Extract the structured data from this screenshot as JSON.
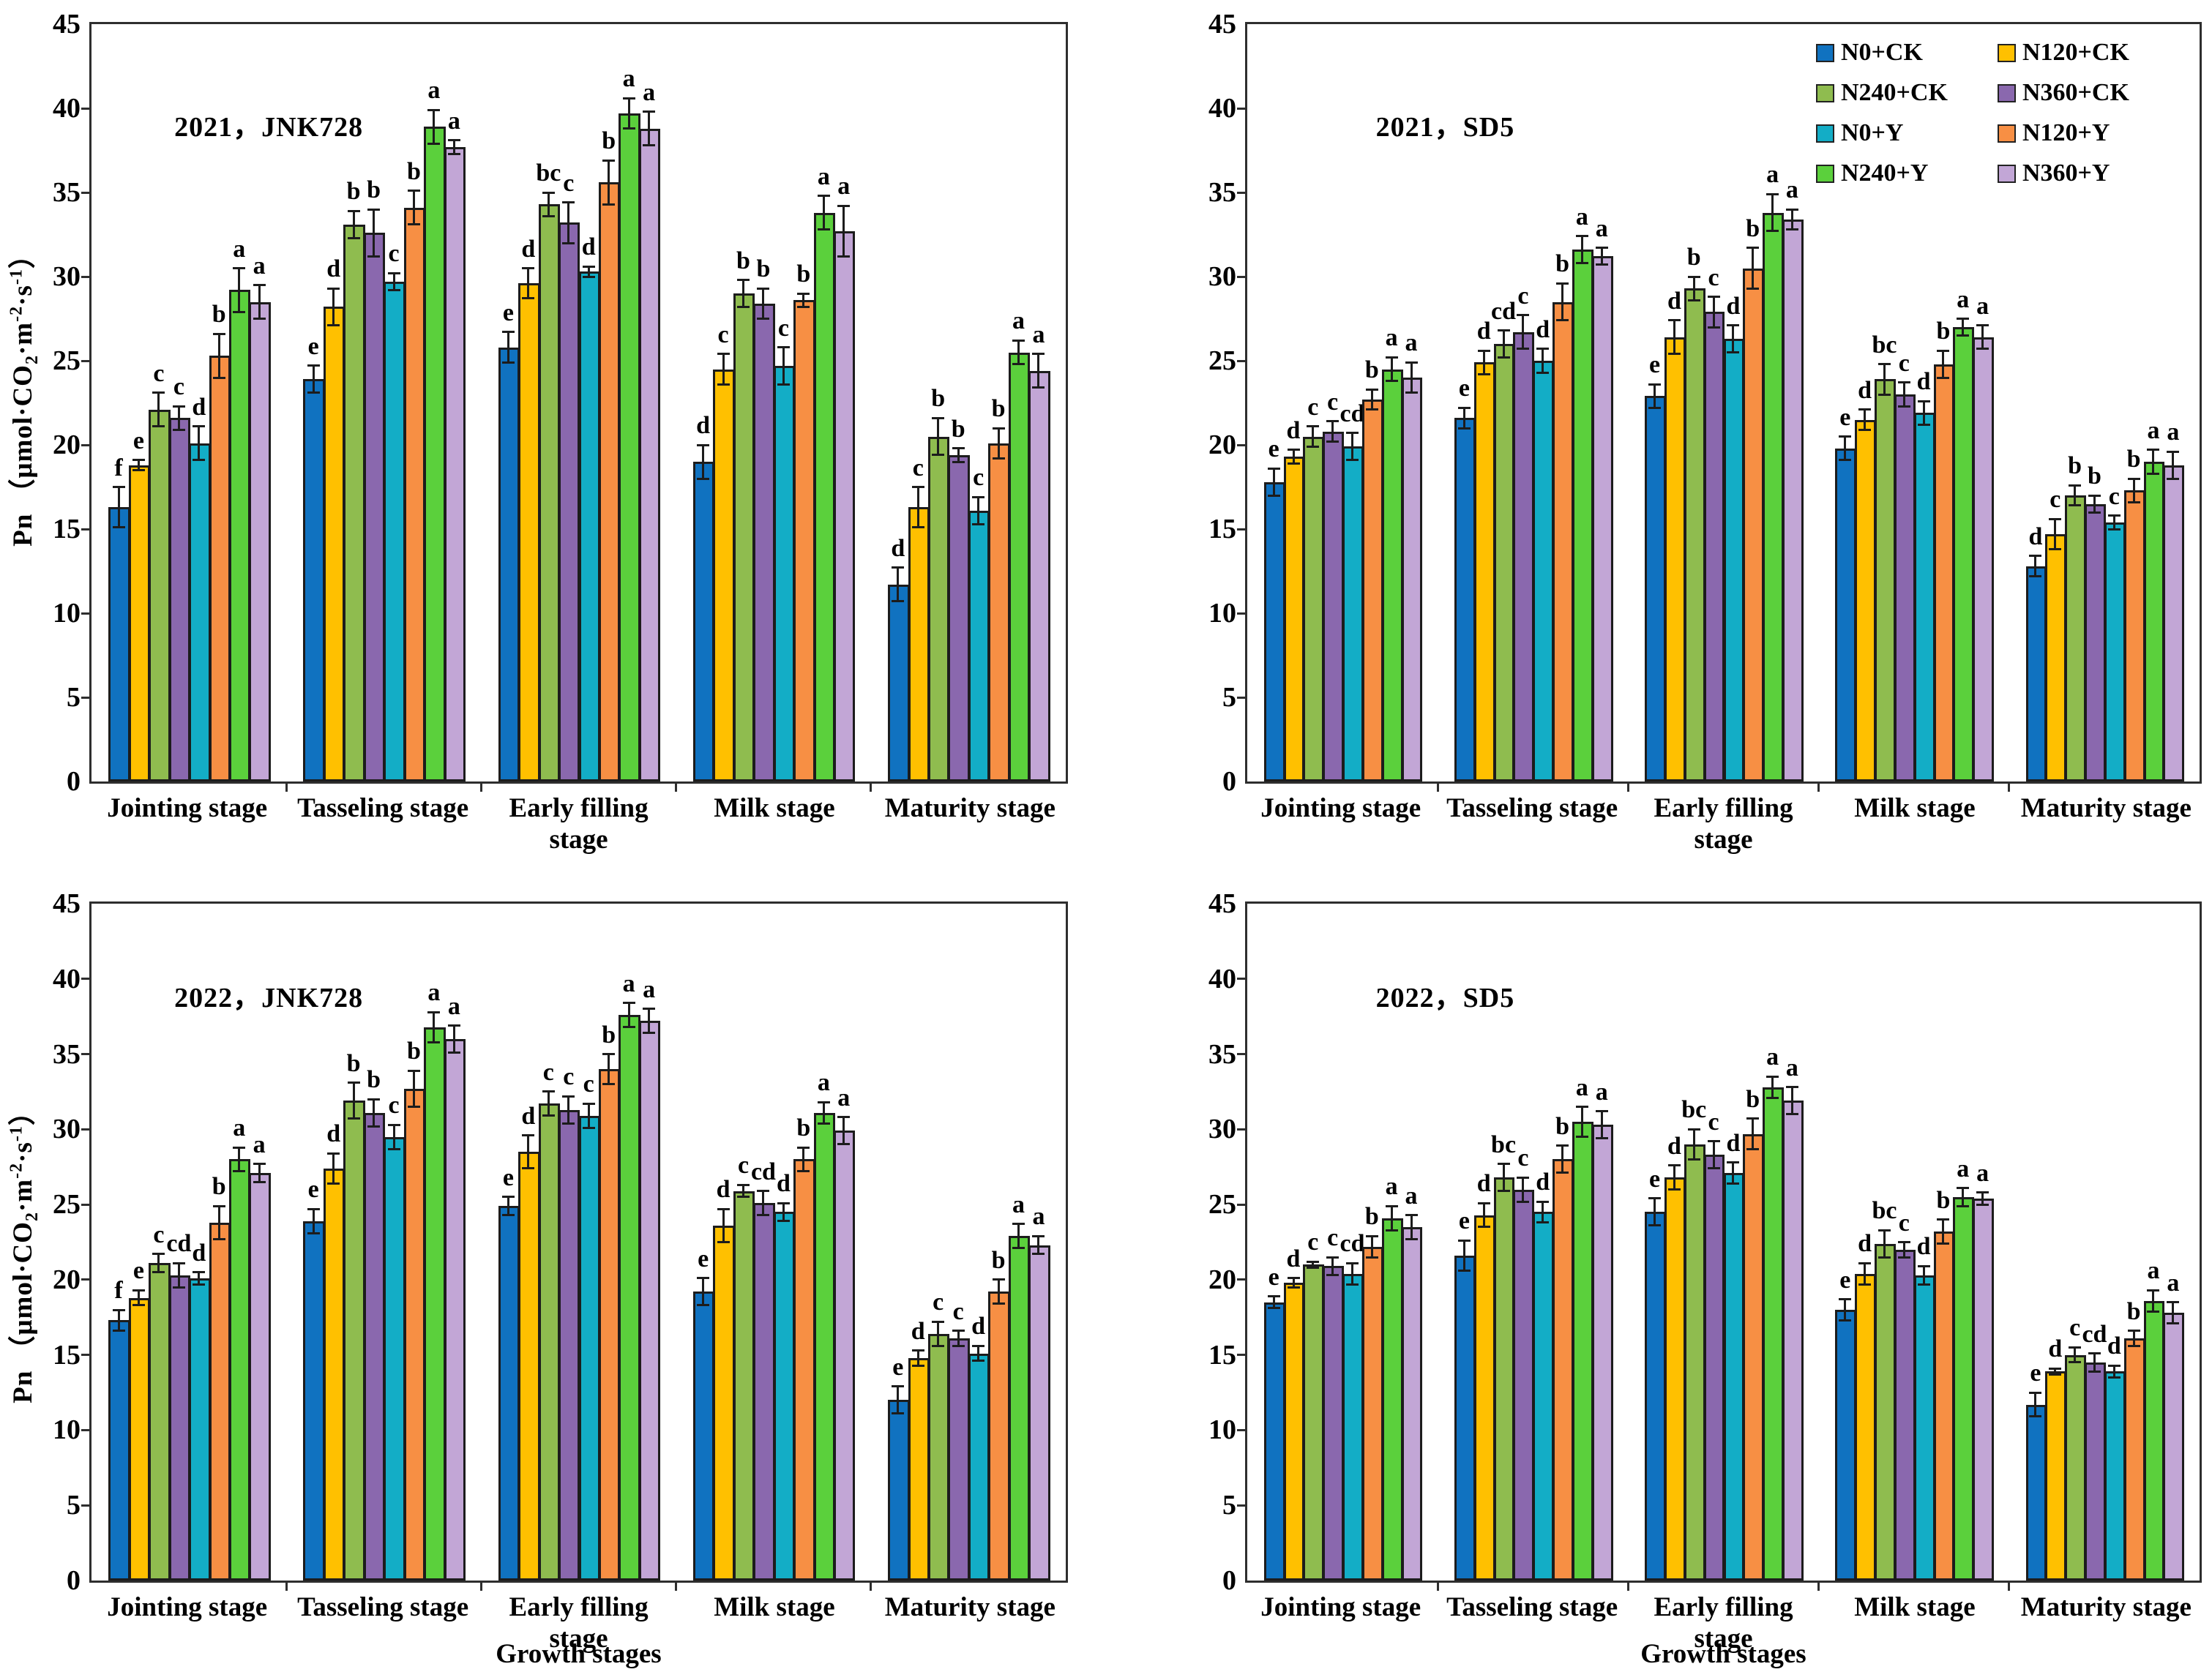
{
  "chart_data": {
    "type": "bar",
    "xlabel": "Growth stages",
    "ylabel_parts": {
      "p1": "Pn （μmol·CO",
      "sub": "2",
      "p2": "·m",
      "sup1": "-2",
      "p3": "·s",
      "sup2": "-1",
      "p4": "）"
    },
    "ylim": [
      0,
      45
    ],
    "yticks": [
      0,
      5,
      10,
      15,
      20,
      25,
      30,
      35,
      40,
      45
    ],
    "grid": false,
    "legend_position": "top-right-panel-inside",
    "categories": [
      "Jointing stage",
      "Tasseling stage",
      "Early filling stage",
      "Milk stage",
      "Maturity stage"
    ],
    "series_names": [
      "N0+CK",
      "N120+CK",
      "N240+CK",
      "N360+CK",
      "N0+Y",
      "N120+Y",
      "N240+Y",
      "N360+Y"
    ],
    "series_colors": [
      "#1072C0",
      "#FFC000",
      "#8FBC4F",
      "#8A68AE",
      "#13ADC6",
      "#F78F44",
      "#5BD03C",
      "#C2A6D6"
    ],
    "panels": [
      {
        "title": "2021，JNK728",
        "series": [
          {
            "name": "N0+CK",
            "values": [
              16.3,
              23.9,
              25.8,
              19.0,
              11.7
            ],
            "errors": [
              1.2,
              0.8,
              0.9,
              1.0,
              1.0
            ],
            "letters": [
              "f",
              "e",
              "e",
              "d",
              "d"
            ]
          },
          {
            "name": "N120+CK",
            "values": [
              18.8,
              28.2,
              29.6,
              24.5,
              16.3
            ],
            "errors": [
              0.3,
              1.1,
              0.9,
              0.9,
              1.2
            ],
            "letters": [
              "e",
              "d",
              "d",
              "c",
              "c"
            ]
          },
          {
            "name": "N240+CK",
            "values": [
              22.1,
              33.1,
              34.3,
              29.0,
              20.5
            ],
            "errors": [
              1.0,
              0.8,
              0.7,
              0.8,
              1.1
            ],
            "letters": [
              "c",
              "b",
              "bc",
              "b",
              "b"
            ]
          },
          {
            "name": "N360+CK",
            "values": [
              21.6,
              32.6,
              33.2,
              28.4,
              19.4
            ],
            "errors": [
              0.7,
              1.4,
              1.2,
              0.9,
              0.4
            ],
            "letters": [
              "c",
              "b",
              "c",
              "b",
              "b"
            ]
          },
          {
            "name": "N0+Y",
            "values": [
              20.1,
              29.7,
              30.3,
              24.7,
              16.1
            ],
            "errors": [
              1.0,
              0.5,
              0.3,
              1.1,
              0.8
            ],
            "letters": [
              "d",
              "c",
              "d",
              "c",
              "c"
            ]
          },
          {
            "name": "N120+Y",
            "values": [
              25.3,
              34.1,
              35.6,
              28.6,
              20.1
            ],
            "errors": [
              1.3,
              1.0,
              1.3,
              0.4,
              0.9
            ],
            "letters": [
              "b",
              "b",
              "b",
              "b",
              "b"
            ]
          },
          {
            "name": "N240+Y",
            "values": [
              29.2,
              38.9,
              39.7,
              33.8,
              25.5
            ],
            "errors": [
              1.3,
              1.0,
              0.9,
              1.0,
              0.7
            ],
            "letters": [
              "a",
              "a",
              "a",
              "a",
              "a"
            ]
          },
          {
            "name": "N360+Y",
            "values": [
              28.5,
              37.7,
              38.8,
              32.7,
              24.4
            ],
            "errors": [
              1.0,
              0.4,
              1.0,
              1.5,
              1.0
            ],
            "letters": [
              "a",
              "a",
              "a",
              "a",
              "a"
            ]
          }
        ]
      },
      {
        "title": "2021，SD5",
        "series": [
          {
            "name": "N0+CK",
            "values": [
              17.8,
              21.6,
              22.9,
              19.8,
              12.8
            ],
            "errors": [
              0.8,
              0.6,
              0.7,
              0.7,
              0.6
            ],
            "letters": [
              "e",
              "e",
              "e",
              "e",
              "d"
            ]
          },
          {
            "name": "N120+CK",
            "values": [
              19.3,
              24.9,
              26.4,
              21.5,
              14.7
            ],
            "errors": [
              0.4,
              0.7,
              1.0,
              0.6,
              0.9
            ],
            "letters": [
              "d",
              "d",
              "d",
              "d",
              "c"
            ]
          },
          {
            "name": "N240+CK",
            "values": [
              20.5,
              26.0,
              29.3,
              23.9,
              17.0
            ],
            "errors": [
              0.6,
              0.8,
              0.7,
              0.9,
              0.6
            ],
            "letters": [
              "c",
              "cd",
              "b",
              "bc",
              "b"
            ]
          },
          {
            "name": "N360+CK",
            "values": [
              20.8,
              26.7,
              27.9,
              23.0,
              16.5
            ],
            "errors": [
              0.6,
              1.0,
              0.9,
              0.7,
              0.5
            ],
            "letters": [
              "c",
              "c",
              "c",
              "c",
              "b"
            ]
          },
          {
            "name": "N0+Y",
            "values": [
              19.9,
              25.0,
              26.3,
              21.9,
              15.4
            ],
            "errors": [
              0.8,
              0.7,
              0.8,
              0.7,
              0.4
            ],
            "letters": [
              "cd",
              "d",
              "d",
              "d",
              "c"
            ]
          },
          {
            "name": "N120+Y",
            "values": [
              22.7,
              28.5,
              30.5,
              24.8,
              17.3
            ],
            "errors": [
              0.6,
              1.1,
              1.2,
              0.8,
              0.7
            ],
            "letters": [
              "b",
              "b",
              "b",
              "b",
              "b"
            ]
          },
          {
            "name": "N240+Y",
            "values": [
              24.5,
              31.6,
              33.8,
              27.0,
              19.0
            ],
            "errors": [
              0.7,
              0.8,
              1.1,
              0.5,
              0.7
            ],
            "letters": [
              "a",
              "a",
              "a",
              "a",
              "a"
            ]
          },
          {
            "name": "N360+Y",
            "values": [
              24.0,
              31.2,
              33.4,
              26.4,
              18.8
            ],
            "errors": [
              0.9,
              0.5,
              0.6,
              0.7,
              0.8
            ],
            "letters": [
              "a",
              "a",
              "a",
              "a",
              "a"
            ]
          }
        ]
      },
      {
        "title": "2022，JNK728",
        "series": [
          {
            "name": "N0+CK",
            "values": [
              17.3,
              23.9,
              24.9,
              19.2,
              12.0
            ],
            "errors": [
              0.7,
              0.8,
              0.6,
              0.9,
              0.9
            ],
            "letters": [
              "f",
              "e",
              "e",
              "e",
              "e"
            ]
          },
          {
            "name": "N120+CK",
            "values": [
              18.8,
              27.4,
              28.5,
              23.6,
              14.8
            ],
            "errors": [
              0.5,
              1.0,
              1.1,
              1.1,
              0.5
            ],
            "letters": [
              "e",
              "d",
              "d",
              "d",
              "d"
            ]
          },
          {
            "name": "N240+CK",
            "values": [
              21.1,
              31.9,
              31.7,
              25.9,
              16.4
            ],
            "errors": [
              0.6,
              1.2,
              0.8,
              0.4,
              0.8
            ],
            "letters": [
              "c",
              "b",
              "c",
              "c",
              "c"
            ]
          },
          {
            "name": "N360+CK",
            "values": [
              20.3,
              31.1,
              31.3,
              25.1,
              16.1
            ],
            "errors": [
              0.8,
              0.9,
              0.9,
              0.8,
              0.5
            ],
            "letters": [
              "cd",
              "b",
              "c",
              "cd",
              "c"
            ]
          },
          {
            "name": "N0+Y",
            "values": [
              20.1,
              29.5,
              30.9,
              24.5,
              15.1
            ],
            "errors": [
              0.4,
              0.8,
              0.8,
              0.6,
              0.5
            ],
            "letters": [
              "d",
              "c",
              "c",
              "d",
              "d"
            ]
          },
          {
            "name": "N120+Y",
            "values": [
              23.8,
              32.7,
              34.0,
              28.0,
              19.2
            ],
            "errors": [
              1.1,
              1.2,
              1.0,
              0.8,
              0.8
            ],
            "letters": [
              "b",
              "b",
              "b",
              "b",
              "b"
            ]
          },
          {
            "name": "N240+Y",
            "values": [
              28.0,
              36.8,
              37.6,
              31.1,
              22.9
            ],
            "errors": [
              0.8,
              1.0,
              0.8,
              0.7,
              0.8
            ],
            "letters": [
              "a",
              "a",
              "a",
              "a",
              "a"
            ]
          },
          {
            "name": "N360+Y",
            "values": [
              27.1,
              36.0,
              37.2,
              29.9,
              22.3
            ],
            "errors": [
              0.6,
              0.9,
              0.8,
              0.9,
              0.6
            ],
            "letters": [
              "a",
              "a",
              "a",
              "a",
              "a"
            ]
          }
        ]
      },
      {
        "title": "2022，SD5",
        "series": [
          {
            "name": "N0+CK",
            "values": [
              18.5,
              21.6,
              24.5,
              18.0,
              11.7
            ],
            "errors": [
              0.4,
              1.0,
              0.9,
              0.7,
              0.8
            ],
            "letters": [
              "e",
              "e",
              "e",
              "e",
              "e"
            ]
          },
          {
            "name": "N120+CK",
            "values": [
              19.8,
              24.3,
              26.8,
              20.4,
              13.9
            ],
            "errors": [
              0.3,
              0.8,
              0.8,
              0.7,
              0.2
            ],
            "letters": [
              "d",
              "d",
              "d",
              "d",
              "d"
            ]
          },
          {
            "name": "N240+CK",
            "values": [
              21.0,
              26.8,
              29.0,
              22.4,
              15.0
            ],
            "errors": [
              0.2,
              0.9,
              1.0,
              0.9,
              0.5
            ],
            "letters": [
              "c",
              "bc",
              "bc",
              "bc",
              "c"
            ]
          },
          {
            "name": "N360+CK",
            "values": [
              20.9,
              26.0,
              28.3,
              22.0,
              14.5
            ],
            "errors": [
              0.6,
              0.8,
              0.9,
              0.5,
              0.6
            ],
            "letters": [
              "c",
              "c",
              "c",
              "c",
              "cd"
            ]
          },
          {
            "name": "N0+Y",
            "values": [
              20.4,
              24.5,
              27.1,
              20.3,
              13.9
            ],
            "errors": [
              0.7,
              0.7,
              0.7,
              0.6,
              0.4
            ],
            "letters": [
              "cd",
              "d",
              "d",
              "d",
              "d"
            ]
          },
          {
            "name": "N120+Y",
            "values": [
              22.2,
              28.0,
              29.7,
              23.2,
              16.1
            ],
            "errors": [
              0.7,
              0.9,
              1.0,
              0.8,
              0.5
            ],
            "letters": [
              "b",
              "b",
              "b",
              "b",
              "b"
            ]
          },
          {
            "name": "N240+Y",
            "values": [
              24.1,
              30.5,
              32.8,
              25.5,
              18.6
            ],
            "errors": [
              0.8,
              1.0,
              0.7,
              0.6,
              0.7
            ],
            "letters": [
              "a",
              "a",
              "a",
              "a",
              "a"
            ]
          },
          {
            "name": "N360+Y",
            "values": [
              23.5,
              30.3,
              31.9,
              25.4,
              17.8
            ],
            "errors": [
              0.8,
              0.9,
              0.9,
              0.4,
              0.7
            ],
            "letters": [
              "a",
              "a",
              "a",
              "a",
              "a"
            ]
          }
        ]
      }
    ]
  }
}
